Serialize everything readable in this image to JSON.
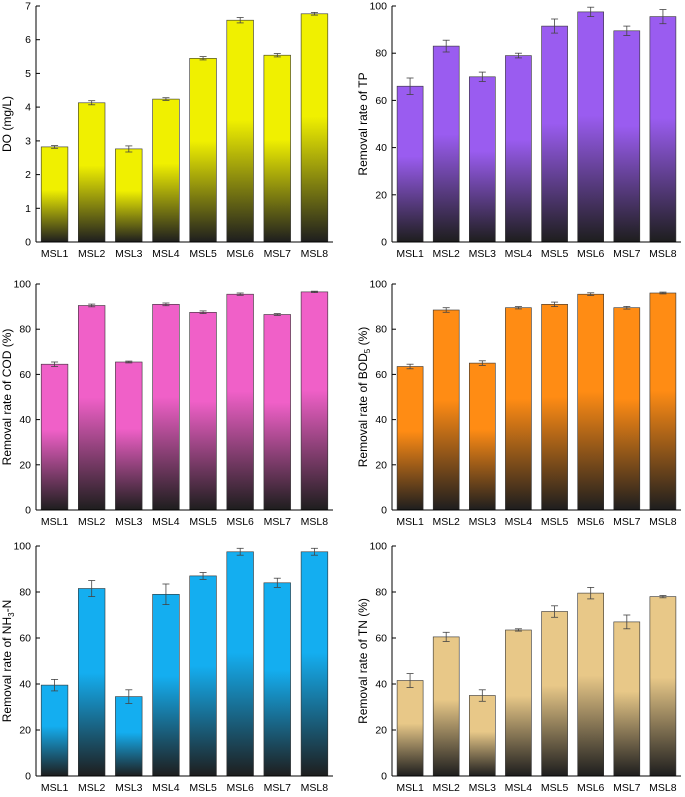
{
  "chart_data": [
    {
      "type": "bar",
      "categories": [
        "MSL1",
        "MSL2",
        "MSL3",
        "MSL4",
        "MSL5",
        "MSL6",
        "MSL7",
        "MSL8"
      ],
      "values": [
        2.82,
        4.13,
        2.76,
        4.24,
        5.45,
        6.58,
        5.54,
        6.77
      ],
      "errors": [
        0.04,
        0.06,
        0.09,
        0.04,
        0.05,
        0.08,
        0.05,
        0.04
      ],
      "ylabel": "DO (mg/L)",
      "ylim": [
        0,
        7
      ],
      "yticks": [
        0,
        1,
        2,
        3,
        4,
        5,
        6,
        7
      ],
      "color": "#f0f000"
    },
    {
      "type": "bar",
      "categories": [
        "MSL1",
        "MSL2",
        "MSL3",
        "MSL4",
        "MSL5",
        "MSL6",
        "MSL7",
        "MSL8"
      ],
      "values": [
        66,
        83,
        70,
        79,
        91.5,
        97.5,
        89.5,
        95.5
      ],
      "errors": [
        3.5,
        2.5,
        2,
        1,
        3,
        2,
        2,
        3
      ],
      "ylabel": "Removal rate of TP",
      "ylim": [
        0,
        100
      ],
      "yticks": [
        0,
        20,
        40,
        60,
        80,
        100
      ],
      "color": "#9a5cf0"
    },
    {
      "type": "bar",
      "categories": [
        "MSL1",
        "MSL2",
        "MSL3",
        "MSL4",
        "MSL5",
        "MSL6",
        "MSL7",
        "MSL8"
      ],
      "values": [
        64.5,
        90.5,
        65.5,
        91,
        87.5,
        95.5,
        86.5,
        96.5
      ],
      "errors": [
        1,
        0.6,
        0.4,
        0.6,
        0.6,
        0.5,
        0.4,
        0.3
      ],
      "ylabel": "Removal rate of COD (%)",
      "ylim": [
        0,
        100
      ],
      "yticks": [
        0,
        20,
        40,
        60,
        80,
        100
      ],
      "color": "#f060c8"
    },
    {
      "type": "bar",
      "categories": [
        "MSL1",
        "MSL2",
        "MSL3",
        "MSL4",
        "MSL5",
        "MSL6",
        "MSL7",
        "MSL8"
      ],
      "values": [
        63.5,
        88.5,
        65,
        89.5,
        91,
        95.5,
        89.5,
        96
      ],
      "errors": [
        1,
        1,
        1,
        0.5,
        1,
        0.6,
        0.6,
        0.4
      ],
      "ylabel": "Removal rate of BOD",
      "ylabel_sub": "5",
      "ylabel_end": " (%)",
      "ylim": [
        0,
        100
      ],
      "yticks": [
        0,
        20,
        40,
        60,
        80,
        100
      ],
      "color": "#ff8c14"
    },
    {
      "type": "bar",
      "categories": [
        "MSL1",
        "MSL2",
        "MSL3",
        "MSL4",
        "MSL5",
        "MSL6",
        "MSL7",
        "MSL8"
      ],
      "values": [
        39.5,
        81.5,
        34.5,
        79,
        87,
        97.5,
        84,
        97.5
      ],
      "errors": [
        2.5,
        3.5,
        3,
        4.5,
        1.5,
        1.5,
        2,
        1.5
      ],
      "ylabel": "Removal rate of NH",
      "ylabel_sub": "3",
      "ylabel_end": "-N",
      "ylim": [
        0,
        100
      ],
      "yticks": [
        0,
        20,
        40,
        60,
        80,
        100
      ],
      "color": "#14aef0"
    },
    {
      "type": "bar",
      "categories": [
        "MSL1",
        "MSL2",
        "MSL3",
        "MSL4",
        "MSL5",
        "MSL6",
        "MSL7",
        "MSL8"
      ],
      "values": [
        41.5,
        60.5,
        35,
        63.5,
        71.5,
        79.5,
        67,
        78
      ],
      "errors": [
        3,
        2,
        2.5,
        0.5,
        2.5,
        2.5,
        3,
        0.5
      ],
      "ylabel": "Removal rate of TN (%)",
      "ylim": [
        0,
        100
      ],
      "yticks": [
        0,
        20,
        40,
        60,
        80,
        100
      ],
      "color": "#e8c888"
    }
  ]
}
